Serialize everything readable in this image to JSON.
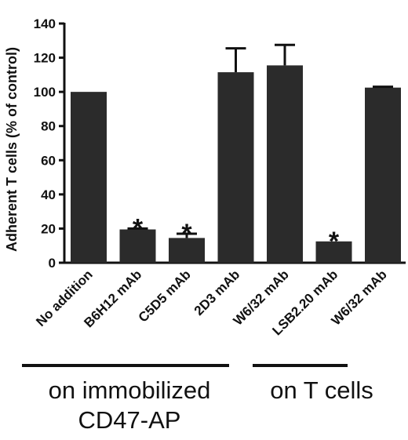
{
  "chart_data": {
    "type": "bar",
    "ylabel": "Adherent T cells (% of control)",
    "ylim": [
      0,
      140
    ],
    "yticks": [
      0,
      20,
      40,
      60,
      80,
      100,
      120,
      140
    ],
    "categories": [
      "No addition",
      "B6H12 mAb",
      "C5D5 mAb",
      "2D3 mAb",
      "W6/32 mAb",
      "LSB2.20 mAb",
      "W6/32 mAb"
    ],
    "values": [
      100,
      19.5,
      14.5,
      111.5,
      115.5,
      12.5,
      102.5
    ],
    "errors": [
      0,
      0.5,
      2.5,
      14,
      12,
      0,
      0.5
    ],
    "significance": [
      "",
      "*",
      "*",
      "",
      "",
      "*",
      ""
    ],
    "bar_color": "#2b2b2b",
    "groups": [
      {
        "label_lines": [
          "on immobilized",
          "CD47-AP"
        ],
        "categories": [
          "No addition",
          "B6H12 mAb",
          "C5D5 mAb",
          "2D3 mAb"
        ]
      },
      {
        "label_lines": [
          "on T cells"
        ],
        "categories": [
          "W6/32 mAb",
          "LSB2.20 mAb"
        ]
      }
    ]
  }
}
